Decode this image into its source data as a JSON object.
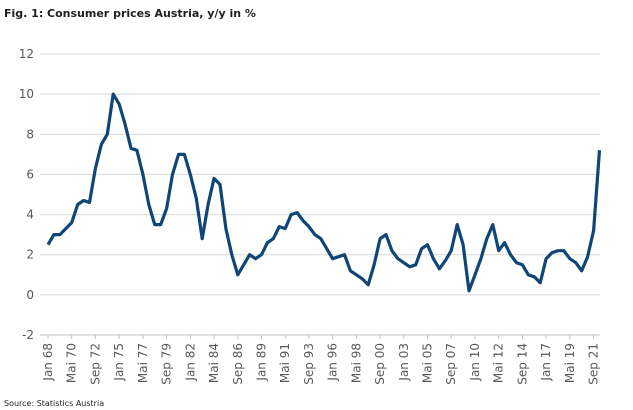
{
  "chart_data": {
    "type": "line",
    "title": "Fig. 1: Consumer prices Austria, y/y in %",
    "source": "Source: Statistics Austria",
    "categories": [
      "Jan 68",
      null,
      null,
      null,
      "Mai 70",
      null,
      null,
      null,
      "Sep 72",
      null,
      null,
      null,
      "Jan 75",
      null,
      null,
      null,
      "Mai 77",
      null,
      null,
      null,
      "Sep 79",
      null,
      null,
      null,
      "Jan 82",
      null,
      null,
      null,
      "Mai 84",
      null,
      null,
      null,
      "Sep 86",
      null,
      null,
      null,
      "Jan 89",
      null,
      null,
      null,
      "Mai 91",
      null,
      null,
      null,
      "Sep 93",
      null,
      null,
      null,
      "Jan 96",
      null,
      null,
      null,
      "Mai 98",
      null,
      null,
      null,
      "Sep 00",
      null,
      null,
      null,
      "Jan 03",
      null,
      null,
      null,
      "Mai 05",
      null,
      null,
      null,
      "Sep 07",
      null,
      null,
      null,
      "Jan 10",
      null,
      null,
      null,
      "Mai 12",
      null,
      null,
      null,
      "Sep 14",
      null,
      null,
      null,
      "Jan 17",
      null,
      null,
      null,
      "Mai 19",
      null,
      null,
      null,
      "Sep 21",
      null
    ],
    "series": [
      {
        "name": "Consumer prices",
        "color": "#0f4577",
        "values": [
          2.5,
          3.0,
          3.0,
          3.3,
          3.6,
          4.5,
          4.7,
          4.6,
          6.3,
          7.5,
          8.0,
          10.0,
          9.5,
          8.5,
          7.3,
          7.2,
          6.0,
          4.5,
          3.5,
          3.5,
          4.3,
          6.0,
          7.0,
          7.0,
          6.0,
          4.8,
          2.8,
          4.5,
          5.8,
          5.5,
          3.3,
          2.0,
          1.0,
          1.5,
          2.0,
          1.8,
          2.0,
          2.6,
          2.8,
          3.4,
          3.3,
          4.0,
          4.1,
          3.7,
          3.4,
          3.0,
          2.8,
          2.3,
          1.8,
          1.9,
          2.0,
          1.2,
          1.0,
          0.8,
          0.5,
          1.5,
          2.8,
          3.0,
          2.2,
          1.8,
          1.6,
          1.4,
          1.5,
          2.3,
          2.5,
          1.8,
          1.3,
          1.7,
          2.2,
          3.5,
          2.5,
          0.2,
          1.0,
          1.8,
          2.8,
          3.5,
          2.2,
          2.6,
          2.0,
          1.6,
          1.5,
          1.0,
          0.9,
          0.6,
          1.8,
          2.1,
          2.2,
          2.2,
          1.8,
          1.6,
          1.2,
          1.9,
          3.2,
          7.2
        ]
      }
    ],
    "ylim": [
      -2,
      12
    ],
    "yticks": [
      -2,
      0,
      2,
      4,
      6,
      8,
      10,
      12
    ],
    "grid": true
  }
}
